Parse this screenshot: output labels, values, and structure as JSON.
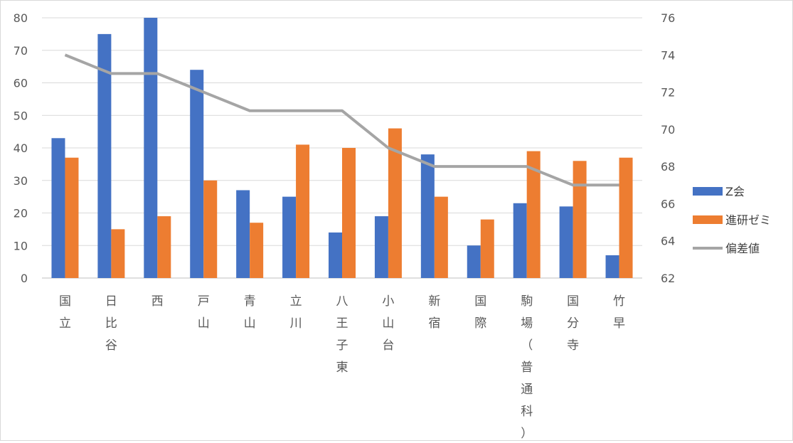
{
  "chart_data": {
    "type": "bar",
    "categories": [
      "国立",
      "日比谷",
      "西",
      "戸山",
      "青山",
      "立川",
      "八王子東",
      "小山台",
      "新宿",
      "国際",
      "駒場（普通科）",
      "国分寺",
      "竹早"
    ],
    "series": [
      {
        "name": "Z会",
        "type": "bar",
        "axis": "left",
        "color": "#4472c4",
        "values": [
          43,
          75,
          80,
          64,
          27,
          25,
          14,
          19,
          38,
          10,
          23,
          22,
          7
        ]
      },
      {
        "name": "進研ゼミ",
        "type": "bar",
        "axis": "left",
        "color": "#ed7d31",
        "values": [
          37,
          15,
          19,
          30,
          17,
          41,
          40,
          46,
          25,
          18,
          39,
          36,
          37
        ]
      },
      {
        "name": "偏差値",
        "type": "line",
        "axis": "right",
        "color": "#a5a5a5",
        "values": [
          74,
          73,
          73,
          72,
          71,
          71,
          71,
          69,
          68,
          68,
          68,
          67,
          67
        ]
      }
    ],
    "ylim_left": [
      0,
      80
    ],
    "yticks_left": [
      "0",
      "10",
      "20",
      "30",
      "40",
      "50",
      "60",
      "70",
      "80"
    ],
    "ylim_right": [
      62,
      76
    ],
    "yticks_right": [
      "62",
      "64",
      "66",
      "68",
      "70",
      "72",
      "74",
      "76"
    ],
    "grid": true,
    "legend_position": "right"
  }
}
